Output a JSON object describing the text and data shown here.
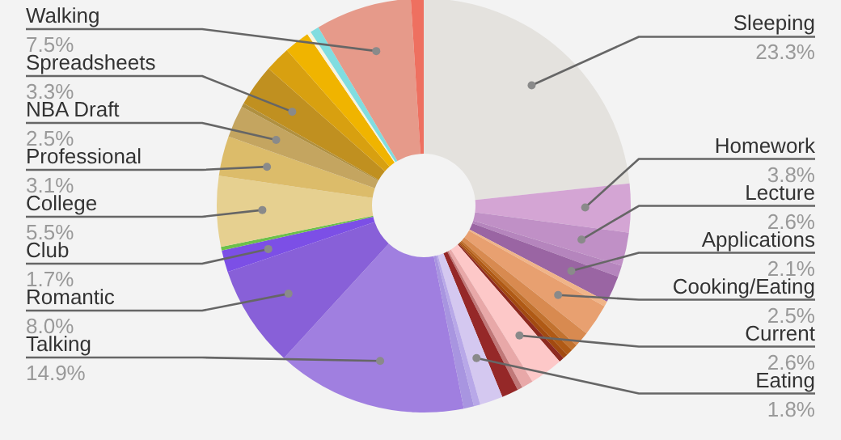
{
  "chart_data": {
    "type": "donut",
    "categories": [
      "Sleeping",
      "Homework",
      "Lecture",
      null,
      "Applications",
      null,
      "Cooking/Eating",
      null,
      null,
      null,
      null,
      null,
      "Current",
      null,
      null,
      null,
      "Eating",
      null,
      null,
      "Talking",
      "Romantic",
      "Club",
      null,
      "College",
      "Professional",
      "NBA Draft",
      null,
      "Spreadsheets",
      null,
      null,
      null,
      null,
      "Walking",
      null
    ],
    "values": [
      23.3,
      3.8,
      2.6,
      0.9,
      2.1,
      0.4,
      2.5,
      1.2,
      0.5,
      0.5,
      0.4,
      0.4,
      2.6,
      0.9,
      0.4,
      1.3,
      1.8,
      0.5,
      0.8,
      14.9,
      8.0,
      1.7,
      0.3,
      5.5,
      3.1,
      2.5,
      0.3,
      3.3,
      2.0,
      2.0,
      0.3,
      0.7,
      7.5,
      1.0
    ],
    "value_labels": [
      "23.3%",
      "3.8%",
      "2.6%",
      null,
      "2.1%",
      null,
      "2.5%",
      null,
      null,
      null,
      null,
      null,
      "2.6%",
      null,
      null,
      null,
      "1.8%",
      null,
      null,
      "14.9%",
      "8.0%",
      "1.7%",
      null,
      "5.5%",
      "3.1%",
      "2.5%",
      null,
      "3.3%",
      null,
      null,
      null,
      null,
      "7.5%",
      null
    ],
    "colors": [
      "#e4e2de",
      "#d4a5d4",
      "#c090c6",
      "#b585bd",
      "#9a65a3",
      "#f0b488",
      "#e8a070",
      "#d88a50",
      "#c2722f",
      "#b05a15",
      "#a24a10",
      "#8e2a20",
      "#fdc8c8",
      "#e8a8a8",
      "#c07878",
      "#952828",
      "#d4c8f0",
      "#b8a8e8",
      "#a895e0",
      "#a07fe0",
      "#8860d8",
      "#7c4fe6",
      "#6cc04a",
      "#e6d090",
      "#dcbc6a",
      "#c4a560",
      "#b09040",
      "#c09020",
      "#d8a010",
      "#f0b400",
      "#f8f4e0",
      "#80dde0",
      "#e69a8a",
      "#ee7060"
    ]
  }
}
